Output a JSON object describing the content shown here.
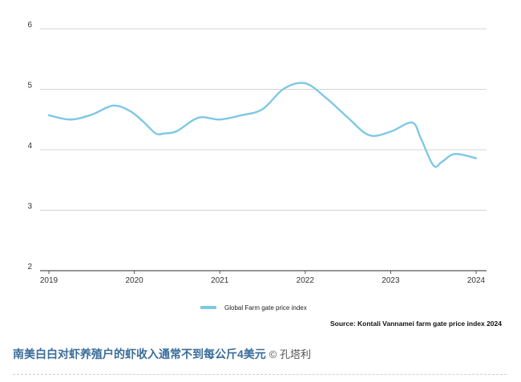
{
  "chart_data": {
    "type": "line",
    "title": "",
    "xlabel": "",
    "ylabel": "",
    "ylim": [
      2,
      6
    ],
    "xlim": [
      2019,
      2024
    ],
    "yticks": [
      2,
      3,
      4,
      5,
      6
    ],
    "xticks": [
      "2019",
      "2020",
      "2021",
      "2022",
      "2023",
      "2024"
    ],
    "grid": "horizontal",
    "legend_position": "bottom-center",
    "series": [
      {
        "name": "Global Farm gate price index",
        "color": "#7ec8e3",
        "x": [
          2019.0,
          2019.25,
          2019.5,
          2019.75,
          2019.95,
          2020.1,
          2020.25,
          2020.35,
          2020.5,
          2020.75,
          2021.0,
          2021.25,
          2021.5,
          2021.75,
          2022.0,
          2022.25,
          2022.5,
          2022.75,
          2023.0,
          2023.25,
          2023.35,
          2023.5,
          2023.6,
          2023.75,
          2024.0
        ],
        "y": [
          4.57,
          4.5,
          4.58,
          4.73,
          4.64,
          4.47,
          4.27,
          4.27,
          4.31,
          4.53,
          4.5,
          4.57,
          4.67,
          5.01,
          5.1,
          4.85,
          4.53,
          4.24,
          4.3,
          4.45,
          4.2,
          3.74,
          3.8,
          3.93,
          3.86
        ]
      }
    ],
    "source": "Source: Kontali Vannamei farm gate price index 2024"
  },
  "caption": {
    "main": "南美白白对虾养殖户的虾收入通常不到每公斤4美元",
    "credit": "© 孔塔利"
  }
}
